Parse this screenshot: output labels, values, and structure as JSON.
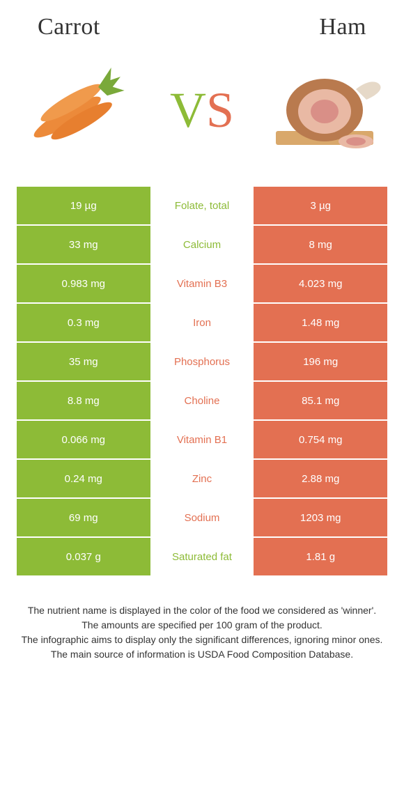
{
  "titles": {
    "left": "Carrot",
    "right": "Ham"
  },
  "vs": {
    "v": "V",
    "s": "S"
  },
  "colors": {
    "carrot": "#8dbb37",
    "ham": "#e37052",
    "mid_bg": "#ffffff",
    "text_white": "#ffffff"
  },
  "rows": [
    {
      "left": "19 µg",
      "label": "Folate, total",
      "right": "3 µg",
      "winner": "carrot"
    },
    {
      "left": "33 mg",
      "label": "Calcium",
      "right": "8 mg",
      "winner": "carrot"
    },
    {
      "left": "0.983 mg",
      "label": "Vitamin B3",
      "right": "4.023 mg",
      "winner": "ham"
    },
    {
      "left": "0.3 mg",
      "label": "Iron",
      "right": "1.48 mg",
      "winner": "ham"
    },
    {
      "left": "35 mg",
      "label": "Phosphorus",
      "right": "196 mg",
      "winner": "ham"
    },
    {
      "left": "8.8 mg",
      "label": "Choline",
      "right": "85.1 mg",
      "winner": "ham"
    },
    {
      "left": "0.066 mg",
      "label": "Vitamin B1",
      "right": "0.754 mg",
      "winner": "ham"
    },
    {
      "left": "0.24 mg",
      "label": "Zinc",
      "right": "2.88 mg",
      "winner": "ham"
    },
    {
      "left": "69 mg",
      "label": "Sodium",
      "right": "1203 mg",
      "winner": "ham"
    },
    {
      "left": "0.037 g",
      "label": "Saturated fat",
      "right": "1.81 g",
      "winner": "carrot"
    }
  ],
  "footnotes": [
    "The nutrient name is displayed in the color of the food we considered as 'winner'.",
    "The amounts are specified per 100 gram of the product.",
    "The infographic aims to display only the significant differences, ignoring minor ones.",
    "The main source of information is USDA Food Composition Database."
  ]
}
